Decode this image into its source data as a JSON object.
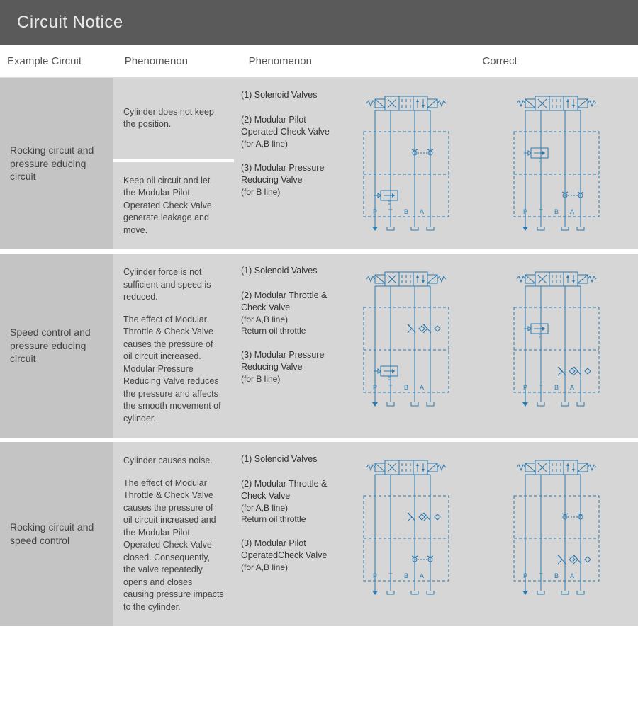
{
  "title": "Circuit Notice",
  "headers": {
    "col1": "Example Circuit",
    "col2": "Phenomenon",
    "col3": "Phenomenon",
    "col4": "Correct"
  },
  "diagram_color": "#2a7ab0",
  "rows": [
    {
      "circuit": "Rocking circuit and pressure educing circuit",
      "phen_a": "Cylinder does not keep the position.",
      "phen_b": "Keep oil circuit and let the Modular Pilot Operated Check Valve generate leakage and move.",
      "components": [
        {
          "n": "(1)",
          "t": "Solenoid Valves",
          "s": ""
        },
        {
          "n": "(2)",
          "t": "Modular Pilot Operated Check Valve",
          "s": "(for A,B line)"
        },
        {
          "n": "(3)",
          "t": "Modular Pressure Reducing Valve",
          "s": "(for B line)"
        }
      ],
      "diagram_left": "rocking_press_wrong",
      "diagram_right": "rocking_press_correct"
    },
    {
      "circuit": "Speed control and pressure educing circuit",
      "phen_a": "Cylinder force is not sufficient and speed is reduced.",
      "phen_b": "The effect of Modular Throttle & Check Valve causes the pressure of oil circuit increased. Modular Pressure Reducing Valve reduces the pressure and affects the smooth movement of cylinder.",
      "single_col2": true,
      "components": [
        {
          "n": "(1)",
          "t": "Solenoid Valves",
          "s": ""
        },
        {
          "n": "(2)",
          "t": "Modular Throttle & Check Valve",
          "s": "(for A,B line)\nReturn oil throttle"
        },
        {
          "n": "(3)",
          "t": "Modular Pressure Reducing Valve",
          "s": "(for B line)"
        }
      ],
      "diagram_left": "speed_press_wrong",
      "diagram_right": "speed_press_correct"
    },
    {
      "circuit": "Rocking circuit and speed control",
      "phen_a": "Cylinder causes noise.",
      "phen_b": "The effect of Modular Throttle & Check Valve causes the pressure of oil circuit increased and the Modular Pilot Operated Check Valve closed. Consequently, the valve repeatedly opens and closes causing pressure impacts to the cylinder.",
      "single_col2": true,
      "components": [
        {
          "n": "(1)",
          "t": "Solenoid Valves",
          "s": ""
        },
        {
          "n": "(2)",
          "t": "Modular Throttle & Check Valve",
          "s": "(for A,B line)\nReturn oil throttle"
        },
        {
          "n": "(3)",
          "t": "Modular Pilot OperatedCheck Valve",
          "s": "(for A,B line)"
        }
      ],
      "diagram_left": "rocking_speed_wrong",
      "diagram_right": "rocking_speed_correct"
    }
  ],
  "port_labels": [
    "P",
    "T",
    "B",
    "A"
  ]
}
